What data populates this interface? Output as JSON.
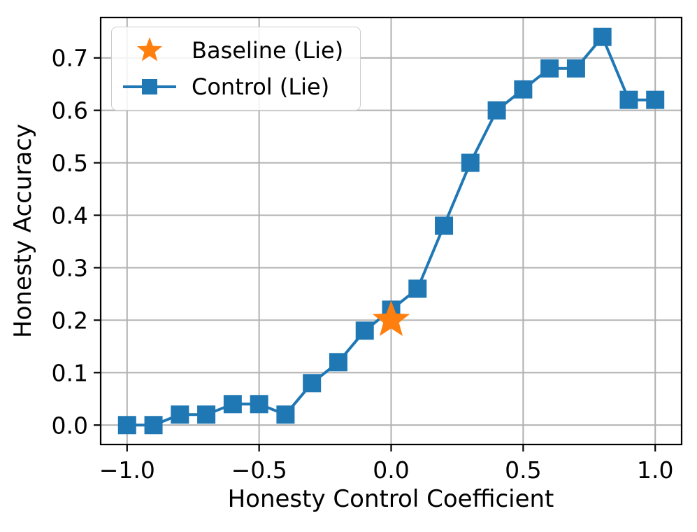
{
  "chart_data": {
    "type": "line",
    "title": "",
    "xlabel": "Honesty Control Coefficient",
    "ylabel": "Honesty Accuracy",
    "xlim": [
      -1.1,
      1.1
    ],
    "ylim": [
      -0.037,
      0.777
    ],
    "grid": true,
    "grid_color": "#b0b0b0",
    "background_color": "#ffffff",
    "legend_position": "upper left",
    "xticks": {
      "values": [
        -1.0,
        -0.5,
        0.0,
        0.5,
        1.0
      ],
      "labels": [
        "−1.0",
        "−0.5",
        "0.0",
        "0.5",
        "1.0"
      ]
    },
    "yticks": {
      "values": [
        0.0,
        0.1,
        0.2,
        0.3,
        0.4,
        0.5,
        0.6,
        0.7
      ],
      "labels": [
        "0.0",
        "0.1",
        "0.2",
        "0.3",
        "0.4",
        "0.5",
        "0.6",
        "0.7"
      ]
    },
    "series": [
      {
        "name": "Baseline (Lie)",
        "type": "scatter",
        "marker": "star",
        "color": "#ff7f0e",
        "x": [
          0.0
        ],
        "y": [
          0.2
        ]
      },
      {
        "name": "Control (Lie)",
        "type": "line",
        "marker": "square",
        "color": "#1f77b4",
        "x": [
          -1.0,
          -0.9,
          -0.8,
          -0.7,
          -0.6,
          -0.5,
          -0.4,
          -0.3,
          -0.2,
          -0.1,
          0.0,
          0.1,
          0.2,
          0.3,
          0.4,
          0.5,
          0.6,
          0.7,
          0.8,
          0.9,
          1.0
        ],
        "y": [
          0.0,
          0.0,
          0.02,
          0.02,
          0.04,
          0.04,
          0.02,
          0.08,
          0.12,
          0.18,
          0.22,
          0.26,
          0.38,
          0.5,
          0.6,
          0.64,
          0.68,
          0.68,
          0.74,
          0.62,
          0.62
        ]
      }
    ]
  }
}
